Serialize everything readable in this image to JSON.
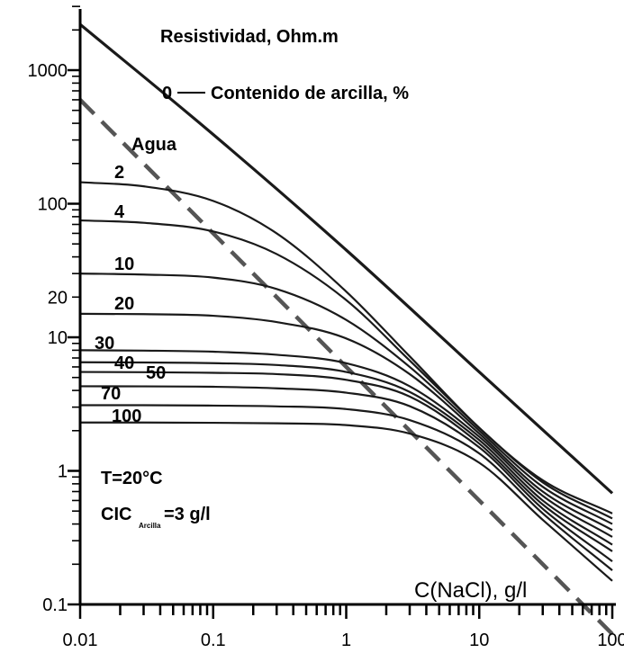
{
  "chart_data": {
    "type": "line",
    "title": "Resistividad, Ohm.m",
    "xlabel": "C(NaCl), g/l",
    "ylabel": "Resistividad, Ohm.m",
    "x_scale": "log",
    "y_scale": "log",
    "xlim": [
      0.01,
      100
    ],
    "ylim": [
      0.1,
      3000
    ],
    "x_tick_labels": [
      "0.01",
      "0.1",
      "1",
      "10",
      "100"
    ],
    "y_tick_labels": [
      "0.1",
      "1",
      "10",
      "20",
      "100",
      "1000"
    ],
    "curve_legend": "Contenido de arcilla, %",
    "annotations": {
      "temperature": "T=20°C",
      "cic_main": "CIC",
      "cic_sub": "Arcilla",
      "cic_value": "=3 g/l"
    },
    "colors": {
      "line": "#1a1a1a",
      "water_line": "#555555"
    },
    "series": [
      {
        "name": "Agua",
        "style": "dashed",
        "x": [
          0.01,
          0.1,
          1,
          10,
          100
        ],
        "y": [
          600,
          60,
          6,
          0.6,
          0.06
        ]
      },
      {
        "name": "0",
        "style": "solid",
        "x": [
          0.01,
          0.1,
          1,
          10,
          100
        ],
        "y": [
          2200,
          330,
          45,
          5.5,
          0.68
        ]
      },
      {
        "name": "2",
        "style": "solid",
        "x": [
          0.01,
          0.03,
          0.1,
          0.3,
          1,
          3,
          10,
          30,
          100
        ],
        "y": [
          145,
          135,
          105,
          60,
          22,
          7.2,
          2.1,
          0.85,
          0.48
        ]
      },
      {
        "name": "4",
        "style": "solid",
        "x": [
          0.01,
          0.03,
          0.1,
          0.3,
          1,
          3,
          10,
          30,
          100
        ],
        "y": [
          75,
          72,
          62,
          42,
          19,
          6.7,
          2.1,
          0.82,
          0.44
        ]
      },
      {
        "name": "10",
        "style": "solid",
        "x": [
          0.01,
          0.03,
          0.1,
          0.3,
          1,
          3,
          10,
          30,
          100
        ],
        "y": [
          30,
          29.5,
          28,
          23,
          13.5,
          6.0,
          2.0,
          0.76,
          0.4
        ]
      },
      {
        "name": "20",
        "style": "solid",
        "x": [
          0.01,
          0.03,
          0.1,
          0.3,
          1,
          3,
          10,
          30,
          100
        ],
        "y": [
          15,
          14.9,
          14.5,
          13,
          9.8,
          5.3,
          1.9,
          0.7,
          0.36
        ]
      },
      {
        "name": "30",
        "style": "solid",
        "x": [
          0.01,
          0.03,
          0.1,
          0.3,
          1,
          3,
          10,
          30,
          100
        ],
        "y": [
          8,
          7.95,
          7.8,
          7.4,
          6.4,
          4.3,
          1.8,
          0.65,
          0.32
        ]
      },
      {
        "name": "40",
        "style": "solid",
        "x": [
          0.01,
          0.03,
          0.1,
          0.3,
          1,
          3,
          10,
          30,
          100
        ],
        "y": [
          6.5,
          6.48,
          6.4,
          6.2,
          5.5,
          3.9,
          1.7,
          0.6,
          0.28
        ]
      },
      {
        "name": "50",
        "style": "solid",
        "x": [
          0.01,
          0.03,
          0.1,
          0.3,
          1,
          3,
          10,
          30,
          100
        ],
        "y": [
          5.5,
          5.48,
          5.42,
          5.3,
          4.8,
          3.6,
          1.6,
          0.56,
          0.25
        ]
      },
      {
        "name": "70",
        "style": "solid",
        "x": [
          0.01,
          0.03,
          0.1,
          0.3,
          1,
          3,
          10,
          30,
          100
        ],
        "y": [
          4.3,
          4.29,
          4.26,
          4.15,
          3.85,
          3.05,
          1.5,
          0.52,
          0.21
        ]
      },
      {
        "name": "100",
        "style": "solid",
        "x": [
          0.01,
          0.03,
          0.1,
          0.3,
          1,
          3,
          10,
          30,
          100
        ],
        "y": [
          3.1,
          3.1,
          3.08,
          3.04,
          2.9,
          2.4,
          1.35,
          0.48,
          0.18
        ]
      },
      {
        "name": "",
        "style": "solid",
        "x": [
          0.01,
          0.03,
          0.1,
          0.3,
          1,
          3,
          10,
          30,
          100
        ],
        "y": [
          2.3,
          2.3,
          2.29,
          2.27,
          2.2,
          1.9,
          1.15,
          0.43,
          0.15
        ]
      }
    ]
  }
}
